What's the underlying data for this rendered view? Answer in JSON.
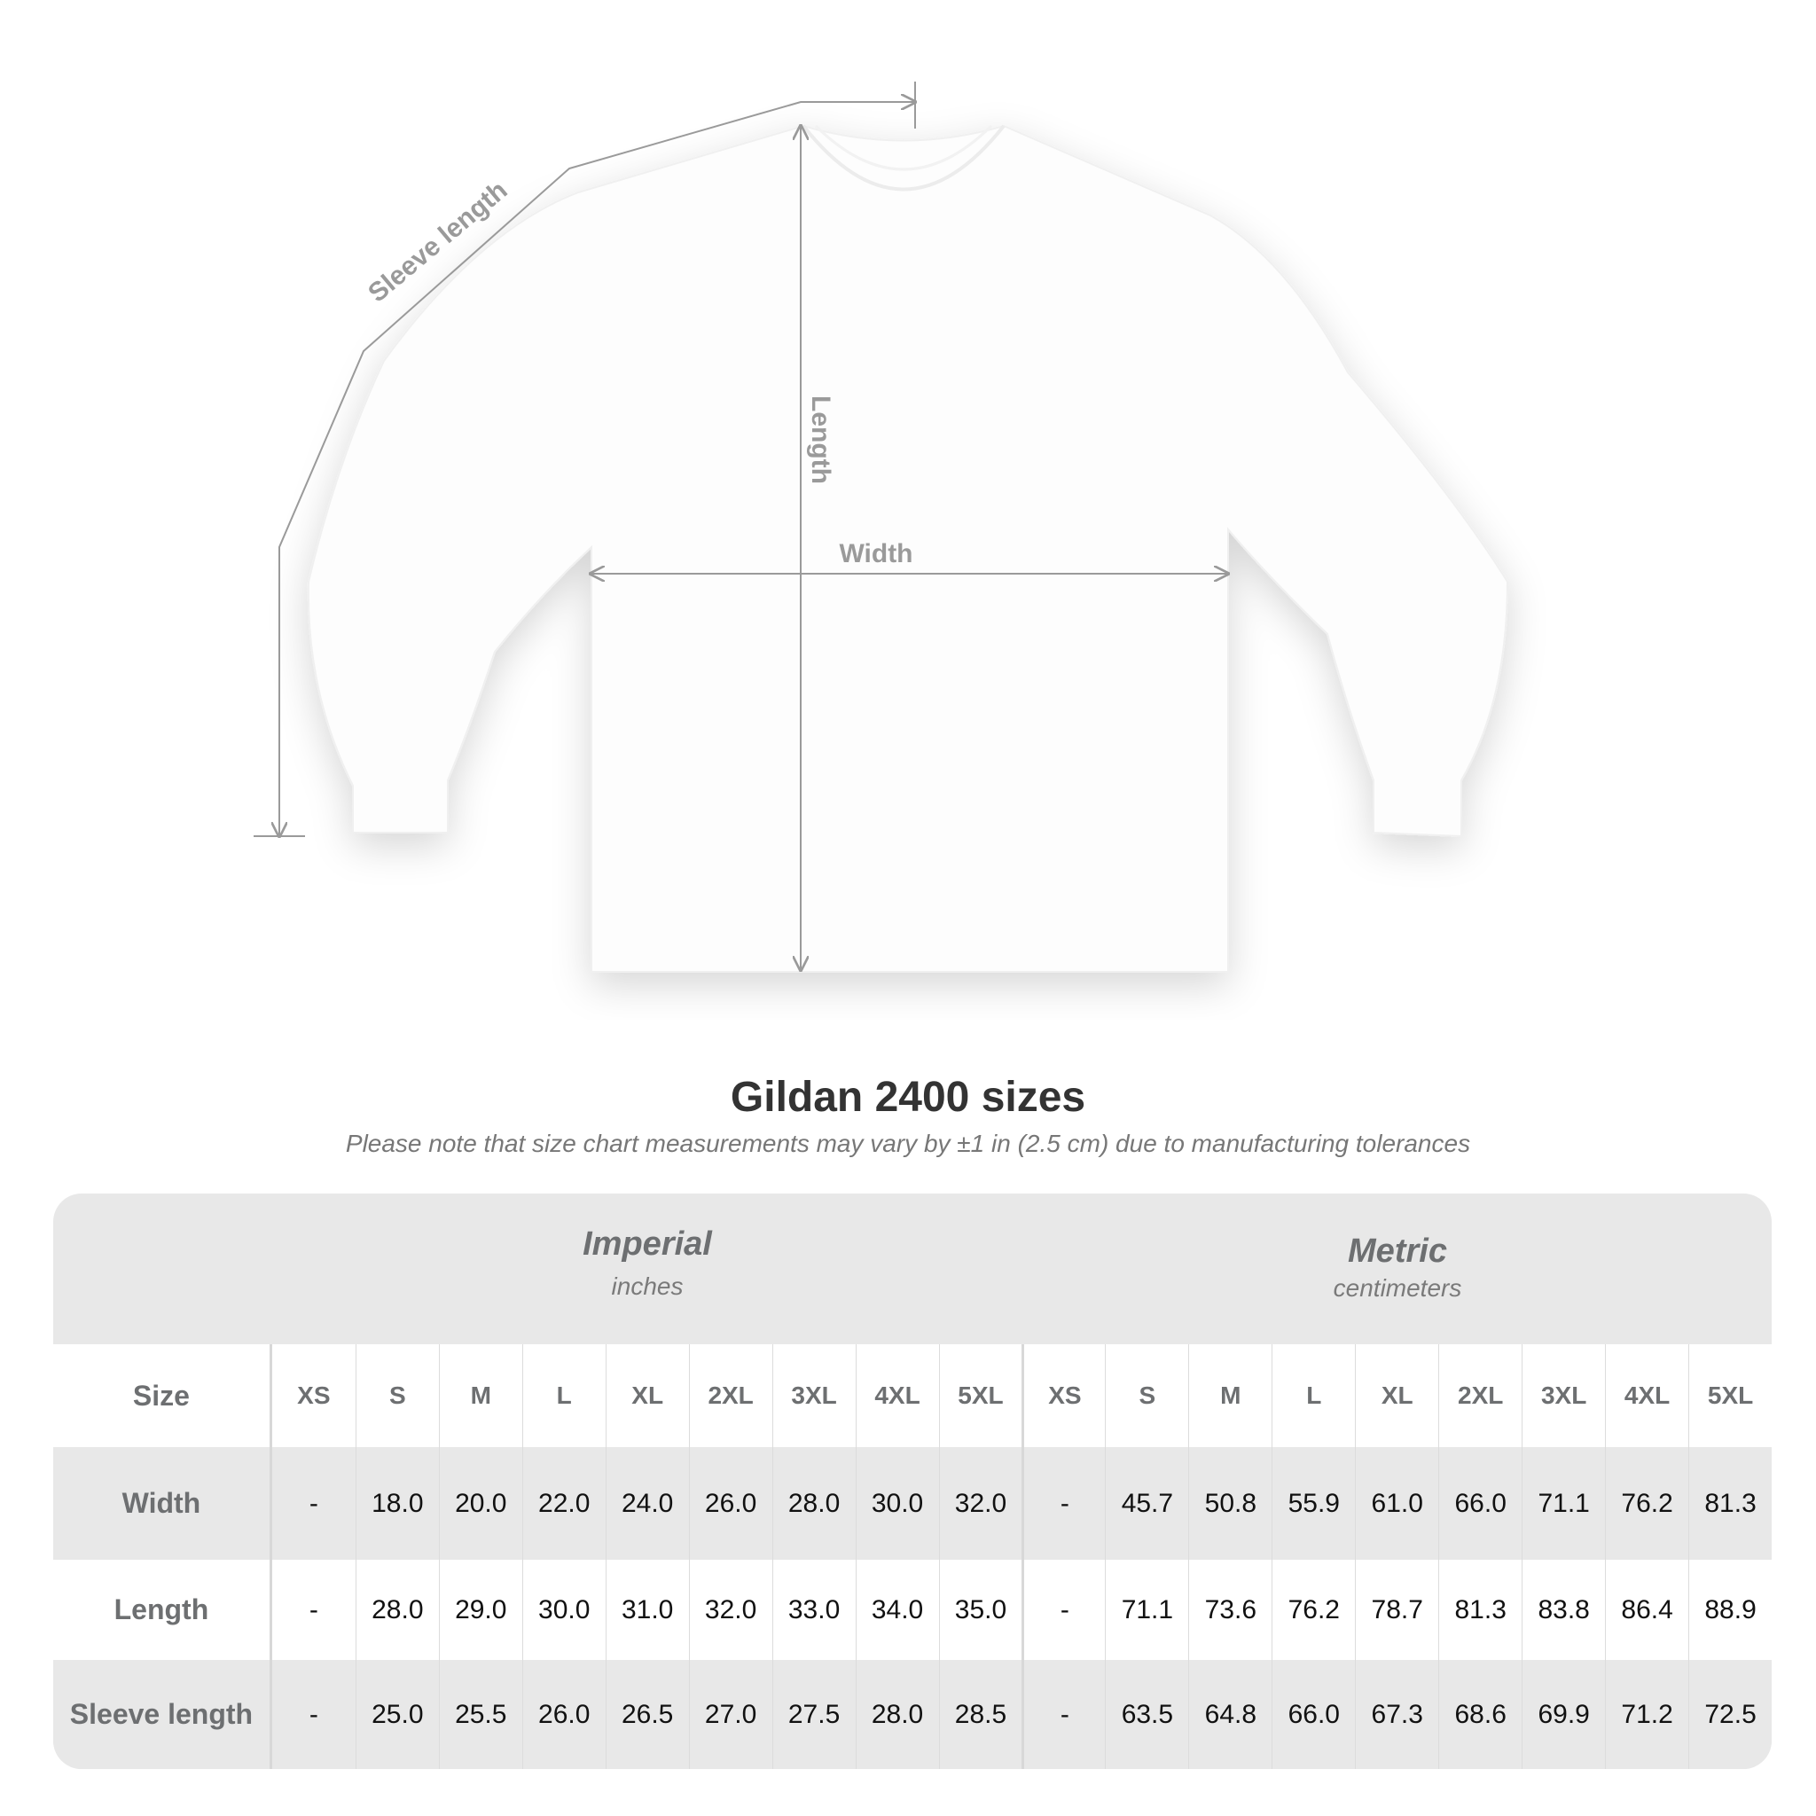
{
  "diagram": {
    "labels": {
      "sleeve": "Sleeve length",
      "length": "Length",
      "width": "Width"
    },
    "shirt_color": "#ffffff",
    "line_color": "#9a9a9a"
  },
  "title": "Gildan 2400 sizes",
  "subtitle": "Please note that size chart measurements may vary by ±1 in (2.5 cm) due to manufacturing tolerances",
  "table": {
    "imperial": {
      "name": "Imperial",
      "unit": "inches"
    },
    "metric": {
      "name": "Metric",
      "unit": "centimeters"
    },
    "size_label": "Size",
    "sizes": [
      "XS",
      "S",
      "M",
      "L",
      "XL",
      "2XL",
      "3XL",
      "4XL",
      "5XL"
    ],
    "rows": [
      {
        "label": "Width",
        "imperial": [
          "-",
          "18.0",
          "20.0",
          "22.0",
          "24.0",
          "26.0",
          "28.0",
          "30.0",
          "32.0"
        ],
        "metric": [
          "-",
          "45.7",
          "50.8",
          "55.9",
          "61.0",
          "66.0",
          "71.1",
          "76.2",
          "81.3"
        ]
      },
      {
        "label": "Length",
        "imperial": [
          "-",
          "28.0",
          "29.0",
          "30.0",
          "31.0",
          "32.0",
          "33.0",
          "34.0",
          "35.0"
        ],
        "metric": [
          "-",
          "71.1",
          "73.6",
          "76.2",
          "78.7",
          "81.3",
          "83.8",
          "86.4",
          "88.9"
        ]
      },
      {
        "label": "Sleeve length",
        "imperial": [
          "-",
          "25.0",
          "25.5",
          "26.0",
          "26.5",
          "27.0",
          "27.5",
          "28.0",
          "28.5"
        ],
        "metric": [
          "-",
          "63.5",
          "64.8",
          "66.0",
          "67.3",
          "68.6",
          "69.9",
          "71.2",
          "72.5"
        ]
      }
    ],
    "colors": {
      "band": "#e8e8e8",
      "label": "#6d6f71",
      "value": "#111111"
    }
  }
}
